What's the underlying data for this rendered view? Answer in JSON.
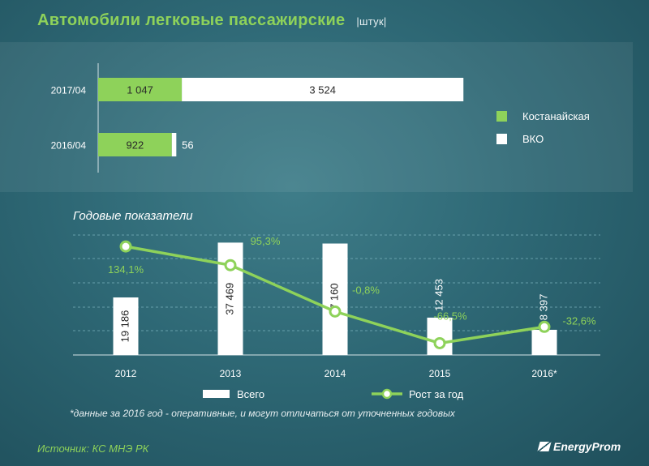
{
  "header": {
    "title": "Автомобили легковые пассажирские",
    "unit": "|штук|"
  },
  "chart_data": [
    {
      "type": "bar",
      "orientation": "horizontal",
      "stacked": true,
      "categories": [
        "2017/04",
        "2016/04"
      ],
      "series": [
        {
          "name": "Костанайская",
          "color": "#8ed25a",
          "values": [
            1047,
            922
          ],
          "labels": [
            "1 047",
            "922"
          ]
        },
        {
          "name": "ВКО",
          "color": "#ffffff",
          "values": [
            3524,
            56
          ],
          "labels": [
            "3 524",
            "56"
          ]
        }
      ],
      "legend_position": "right"
    },
    {
      "type": "bar",
      "title": "Годовые показатели",
      "categories": [
        "2012",
        "2013",
        "2014",
        "2015",
        "2016*"
      ],
      "series": [
        {
          "name": "Всего",
          "type": "bar",
          "color": "#ffffff",
          "values": [
            19186,
            37469,
            37160,
            12453,
            8397
          ],
          "labels": [
            "19 186",
            "37 469",
            "37 160",
            "12 453",
            "8 397"
          ]
        },
        {
          "name": "Рост за год",
          "type": "line",
          "color": "#8ed25a",
          "values": [
            134.1,
            95.3,
            -0.8,
            -66.5,
            -32.6
          ],
          "labels": [
            "134,1%",
            "95,3%",
            "-0,8%",
            "-66,5%",
            "-32,6%"
          ]
        }
      ],
      "legend_position": "bottom",
      "grid": true
    }
  ],
  "footnote": "*данные за 2016 год - оперативные, и могут отличаться от уточненных годовых",
  "footer": {
    "source": "Источник: КС МНЭ РК",
    "brand": "EnergyProm"
  }
}
